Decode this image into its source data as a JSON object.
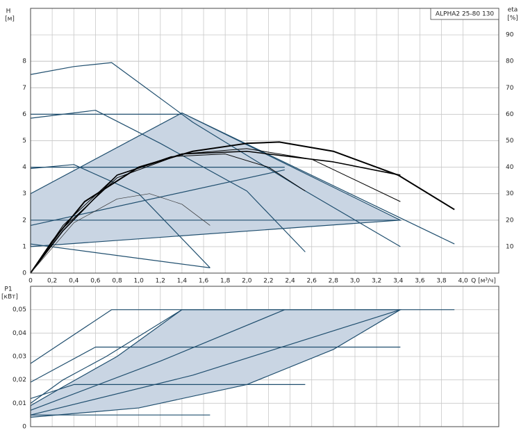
{
  "chart_data": [
    {
      "type": "line",
      "title": "ALPHA2 25-80 130",
      "ylabel": "H",
      "yunit": "[м]",
      "y2label": "eta",
      "y2unit": "[%]",
      "xlabel": "Q [м³/ч]",
      "xlim": [
        0,
        4.33
      ],
      "ylim": [
        0,
        10
      ],
      "y2lim": [
        0,
        100
      ],
      "grid": true,
      "xticks": [
        0,
        {
          "value": 0.2,
          "label": "0,2"
        },
        {
          "value": 0.4,
          "label": "0,4"
        },
        {
          "value": 0.6,
          "label": "0,6"
        },
        {
          "value": 0.8,
          "label": "0,8"
        },
        {
          "value": 1.0,
          "label": "1,0"
        },
        {
          "value": 1.2,
          "label": "1,2"
        },
        {
          "value": 1.4,
          "label": "1,4"
        },
        {
          "value": 1.6,
          "label": "1,6"
        },
        {
          "value": 1.8,
          "label": "1,8"
        },
        {
          "value": 2.0,
          "label": "2,0"
        },
        {
          "value": 2.2,
          "label": "2,2"
        },
        {
          "value": 2.4,
          "label": "2,4"
        },
        {
          "value": 2.6,
          "label": "2,6"
        },
        {
          "value": 2.8,
          "label": "2,8"
        },
        {
          "value": 3.0,
          "label": "3,0"
        },
        {
          "value": 3.2,
          "label": "3,2"
        },
        {
          "value": 3.4,
          "label": "3,4"
        },
        {
          "value": 3.6,
          "label": "3,6"
        },
        {
          "value": 3.8,
          "label": "3,8"
        },
        {
          "value": 4.0,
          "label": "4,0"
        }
      ],
      "yticks": [
        0,
        1,
        2,
        3,
        4,
        5,
        6,
        7,
        8
      ],
      "y2ticks": [
        10,
        20,
        30,
        40,
        50,
        60,
        70,
        80,
        90
      ],
      "series": [
        {
          "fill": "#c9d5e3",
          "color": "#1f4e6e",
          "x": [
            0,
            3.42,
            1.4,
            0
          ],
          "values": [
            1.0,
            2.0,
            6.05,
            3.0
          ]
        },
        {
          "color": "#1f4e6e",
          "x": [
            0,
            0.4,
            0.75,
            1.5,
            2.5,
            3.42
          ],
          "values": [
            7.5,
            7.8,
            7.95,
            5.7,
            3.2,
            1.0
          ]
        },
        {
          "color": "#1f4e6e",
          "x": [
            0,
            0.6,
            1.2,
            2.0,
            2.54
          ],
          "values": [
            5.85,
            6.15,
            4.9,
            3.1,
            0.8
          ]
        },
        {
          "color": "#1f4e6e",
          "x": [
            0,
            0.4,
            1.0,
            1.66
          ],
          "values": [
            3.95,
            4.1,
            3.0,
            0.2
          ]
        },
        {
          "color": "#1f4e6e",
          "x": [
            0,
            1.66
          ],
          "values": [
            1.1,
            0.2
          ]
        },
        {
          "color": "#1f4e6e",
          "x": [
            0,
            1.4
          ],
          "values": [
            6.0,
            6.0
          ]
        },
        {
          "color": "#1f4e6e",
          "x": [
            0,
            2.35
          ],
          "values": [
            4.0,
            4.0
          ]
        },
        {
          "color": "#1f4e6e",
          "x": [
            0,
            3.42
          ],
          "values": [
            2.0,
            2.0
          ]
        },
        {
          "color": "#1f4e6e",
          "x": [
            0,
            2.35
          ],
          "values": [
            1.8,
            3.9
          ]
        },
        {
          "color": "#1f4e6e",
          "x": [
            1.4,
            3.92
          ],
          "values": [
            6.05,
            1.1
          ]
        },
        {
          "color": "#000000",
          "width": 2,
          "axis": "y2",
          "x": [
            0,
            0.2,
            0.5,
            1.0,
            1.5,
            2.0,
            2.3,
            2.8,
            3.4,
            3.92
          ],
          "values": [
            0,
            12,
            27,
            40,
            46,
            49,
            49.5,
            46,
            37,
            24
          ]
        },
        {
          "color": "#000000",
          "width": 1.6,
          "axis": "y2",
          "x": [
            0,
            0.3,
            0.8,
            1.4,
            2.0,
            2.8,
            3.42
          ],
          "values": [
            0,
            16,
            37,
            45,
            46,
            42,
            37
          ]
        },
        {
          "color": "#000000",
          "width": 1,
          "axis": "y2",
          "x": [
            0,
            0.3,
            0.8,
            1.4,
            2.0,
            2.6,
            3.42
          ],
          "values": [
            0,
            17,
            36,
            45,
            47,
            43,
            27
          ]
        },
        {
          "color": "#000000",
          "width": 1,
          "axis": "y2",
          "x": [
            0,
            0.3,
            0.8,
            1.3,
            1.8,
            2.2,
            2.54
          ],
          "values": [
            0,
            18,
            37,
            44,
            45,
            40,
            31
          ]
        },
        {
          "color": "#333333",
          "width": 0.7,
          "axis": "y2",
          "x": [
            0,
            0.4,
            0.8,
            1.1,
            1.4,
            1.66
          ],
          "values": [
            0,
            19,
            28,
            30,
            26,
            18
          ]
        }
      ]
    },
    {
      "type": "line",
      "ylabel": "P1",
      "yunit": "[кВт]",
      "xlim": [
        0,
        4.33
      ],
      "ylim": [
        0,
        0.06
      ],
      "grid": true,
      "xticks": [
        0,
        0.2,
        0.4,
        0.6,
        0.8,
        1.0,
        1.2,
        1.4,
        1.6,
        1.8,
        2.0,
        2.2,
        2.4,
        2.6,
        2.8,
        3.0,
        3.2,
        3.4,
        3.6,
        3.8,
        4.0
      ],
      "yticks": [
        0,
        {
          "value": 0.01,
          "label": "0,01"
        },
        {
          "value": 0.02,
          "label": "0,02"
        },
        {
          "value": 0.03,
          "label": "0,03"
        },
        {
          "value": 0.04,
          "label": "0,04"
        },
        {
          "value": 0.05,
          "label": "0,05"
        }
      ],
      "series": [
        {
          "fill": "#c9d5e3",
          "color": "#1f4e6e",
          "x": [
            0,
            1.0,
            2.0,
            2.8,
            3.42,
            1.4,
            0.8,
            0.3,
            0
          ],
          "values": [
            0.004,
            0.008,
            0.018,
            0.033,
            0.05,
            0.05,
            0.03,
            0.017,
            0.009
          ]
        },
        {
          "color": "#1f4e6e",
          "x": [
            0,
            0.75,
            3.92
          ],
          "values": [
            0.027,
            0.05,
            0.05
          ]
        },
        {
          "color": "#1f4e6e",
          "x": [
            0,
            0.6,
            3.42
          ],
          "values": [
            0.019,
            0.034,
            0.034
          ]
        },
        {
          "color": "#1f4e6e",
          "x": [
            0,
            0.4,
            2.54
          ],
          "values": [
            0.012,
            0.018,
            0.018
          ]
        },
        {
          "color": "#1f4e6e",
          "x": [
            0,
            1.66
          ],
          "values": [
            0.005,
            0.005
          ]
        },
        {
          "color": "#1f4e6e",
          "x": [
            0,
            1.2,
            2.35
          ],
          "values": [
            0.007,
            0.028,
            0.05
          ]
        },
        {
          "color": "#1f4e6e",
          "x": [
            0,
            1.5,
            3.42
          ],
          "values": [
            0.005,
            0.022,
            0.05
          ]
        },
        {
          "color": "#1f4e6e",
          "x": [
            0,
            0.3,
            0.7,
            1.4
          ],
          "values": [
            0.01,
            0.02,
            0.03,
            0.05
          ]
        }
      ]
    }
  ]
}
